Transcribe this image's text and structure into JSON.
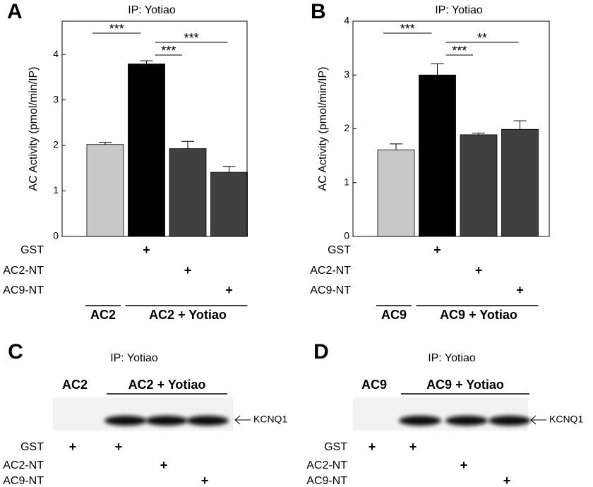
{
  "chart_data": [
    {
      "type": "bar",
      "panel": "A",
      "title": "IP: Yotiao",
      "y_label": "AC Activity (pmol/min/IP)",
      "categories": [
        null,
        null,
        null,
        null
      ],
      "values": [
        2.02,
        3.79,
        1.93,
        1.41
      ],
      "errors": [
        0.05,
        0.07,
        0.16,
        0.13
      ],
      "colors": [
        "#c8c8c8",
        "#000000",
        "#404040",
        "#404040"
      ],
      "ylim": [
        0,
        4.73
      ],
      "yticks": [
        0,
        1,
        2,
        3,
        4
      ],
      "significance": [
        {
          "from": 0,
          "to": 1,
          "label": "***"
        },
        {
          "from": 1,
          "to": 3,
          "label": "***"
        },
        {
          "from": 1,
          "to": 2,
          "label": "***"
        }
      ],
      "conditions": [
        {
          "label": "GST",
          "marks": [
            null,
            "+",
            null,
            null
          ]
        },
        {
          "label": "AC2-NT",
          "marks": [
            null,
            null,
            "+",
            null
          ]
        },
        {
          "label": "AC9-NT",
          "marks": [
            null,
            null,
            null,
            "+"
          ]
        }
      ],
      "groups": [
        {
          "label": "AC2",
          "count": 1
        },
        {
          "label": "AC2 + Yotiao",
          "count": 3
        }
      ]
    },
    {
      "type": "bar",
      "panel": "B",
      "title": "IP: Yotiao",
      "y_label": "AC Activity (pmol/min/IP)",
      "categories": [
        null,
        null,
        null,
        null
      ],
      "values": [
        1.61,
        3.0,
        1.89,
        1.99
      ],
      "errors": [
        0.11,
        0.21,
        0.03,
        0.16
      ],
      "colors": [
        "#c8c8c8",
        "#000000",
        "#404040",
        "#404040"
      ],
      "ylim": [
        0,
        4
      ],
      "yticks": [
        0,
        1,
        2,
        3,
        4
      ],
      "significance": [
        {
          "from": 0,
          "to": 1,
          "label": "***"
        },
        {
          "from": 1,
          "to": 3,
          "label": "**"
        },
        {
          "from": 1,
          "to": 2,
          "label": "***"
        }
      ],
      "conditions": [
        {
          "label": "GST",
          "marks": [
            null,
            "+",
            null,
            null
          ]
        },
        {
          "label": "AC2-NT",
          "marks": [
            null,
            null,
            "+",
            null
          ]
        },
        {
          "label": "AC9-NT",
          "marks": [
            null,
            null,
            null,
            "+"
          ]
        }
      ],
      "groups": [
        {
          "label": "AC9",
          "count": 1
        },
        {
          "label": "AC9 + Yotiao",
          "count": 3
        }
      ]
    }
  ],
  "blots": [
    {
      "panel": "C",
      "title": "IP: Yotiao",
      "band_label": "KCNQ1",
      "bands": [
        false,
        true,
        true,
        true
      ],
      "groups": [
        {
          "label": "AC2",
          "count": 1
        },
        {
          "label": "AC2 + Yotiao",
          "count": 3
        }
      ],
      "conditions": [
        {
          "label": "GST",
          "marks": [
            "+",
            "+",
            null,
            null
          ]
        },
        {
          "label": "AC2-NT",
          "marks": [
            null,
            null,
            "+",
            null
          ]
        },
        {
          "label": "AC9-NT",
          "marks": [
            null,
            null,
            null,
            "+"
          ]
        }
      ]
    },
    {
      "panel": "D",
      "title": "IP: Yotiao",
      "band_label": "KCNQ1",
      "bands": [
        false,
        true,
        true,
        true
      ],
      "groups": [
        {
          "label": "AC9",
          "count": 1
        },
        {
          "label": "AC9 + Yotiao",
          "count": 3
        }
      ],
      "conditions": [
        {
          "label": "GST",
          "marks": [
            "+",
            "+",
            null,
            null
          ]
        },
        {
          "label": "AC2-NT",
          "marks": [
            null,
            null,
            "+",
            null
          ]
        },
        {
          "label": "AC9-NT",
          "marks": [
            null,
            null,
            null,
            "+"
          ]
        }
      ]
    }
  ]
}
